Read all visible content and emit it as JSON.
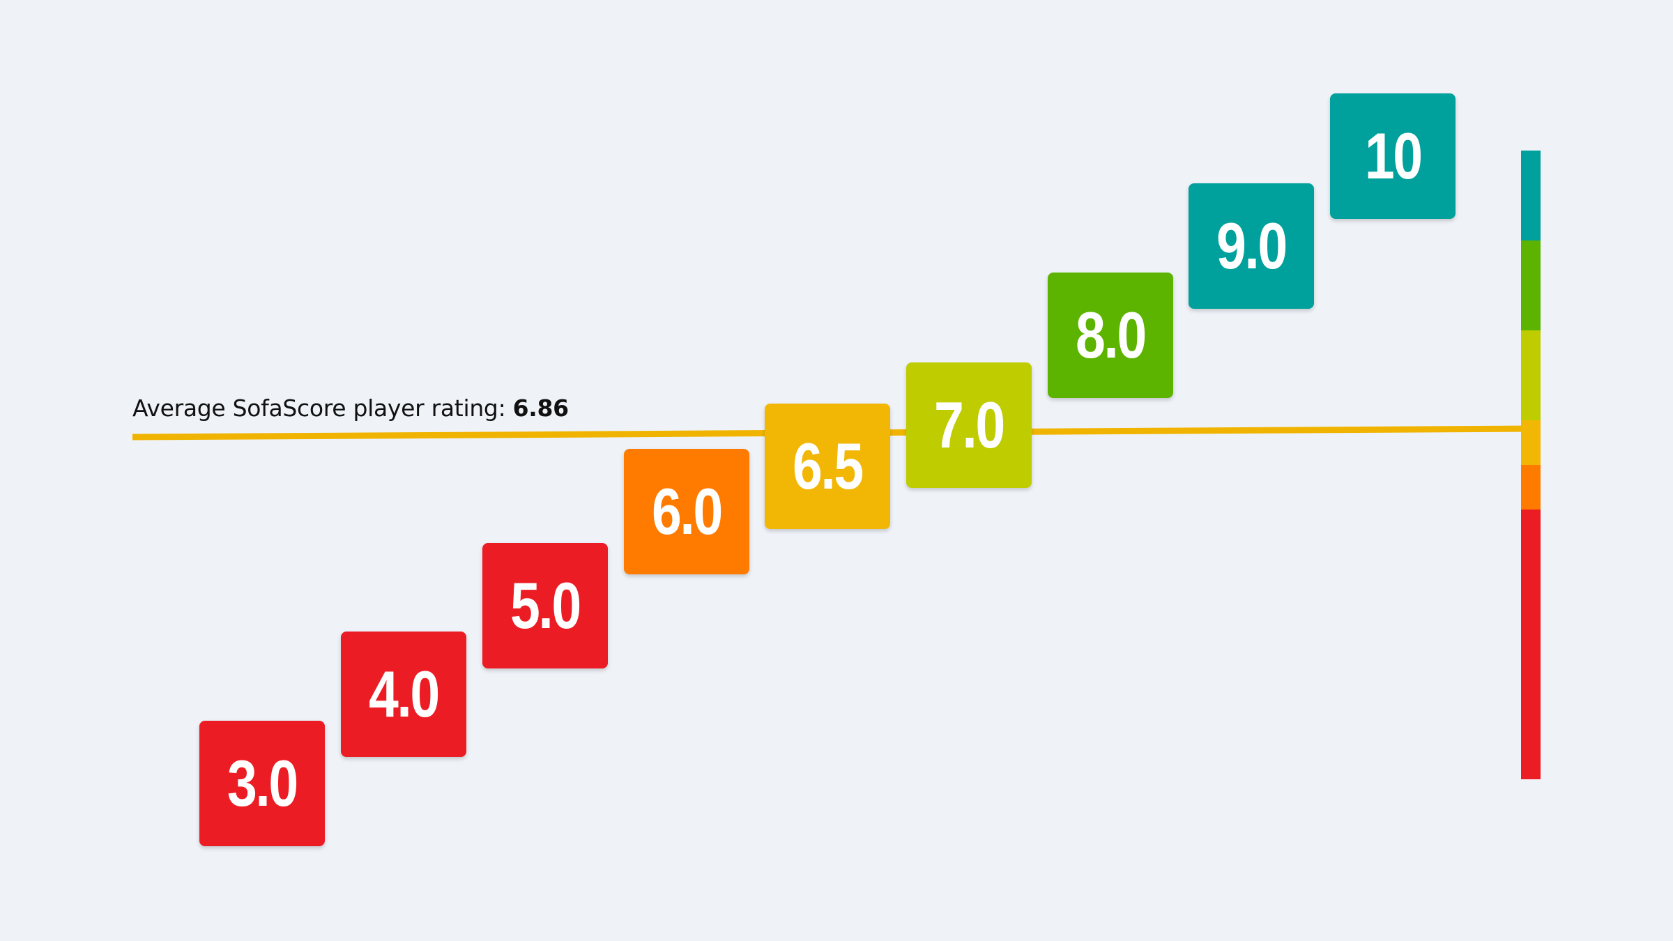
{
  "average": {
    "label_prefix": "Average SofaScore player rating: ",
    "value": "6.86",
    "line_color": "#f0b400"
  },
  "tiles": [
    {
      "label": "3.0",
      "color": "#ec1c24"
    },
    {
      "label": "4.0",
      "color": "#ec1c24"
    },
    {
      "label": "5.0",
      "color": "#ec1c24"
    },
    {
      "label": "6.0",
      "color": "#ff7b00"
    },
    {
      "label": "6.5",
      "color": "#f2b705"
    },
    {
      "label": "7.0",
      "color": "#bfcc00"
    },
    {
      "label": "8.0",
      "color": "#5cb400"
    },
    {
      "label": "9.0",
      "color": "#00a19c"
    },
    {
      "label": "10",
      "color": "#00a19c"
    }
  ],
  "scale_bar": [
    {
      "color": "#00a19c",
      "share": 1
    },
    {
      "color": "#5cb400",
      "share": 1
    },
    {
      "color": "#bfcc00",
      "share": 1
    },
    {
      "color": "#f2b705",
      "share": 0.5
    },
    {
      "color": "#ff7b00",
      "share": 0.5
    },
    {
      "color": "#ec1c24",
      "share": 3
    }
  ]
}
